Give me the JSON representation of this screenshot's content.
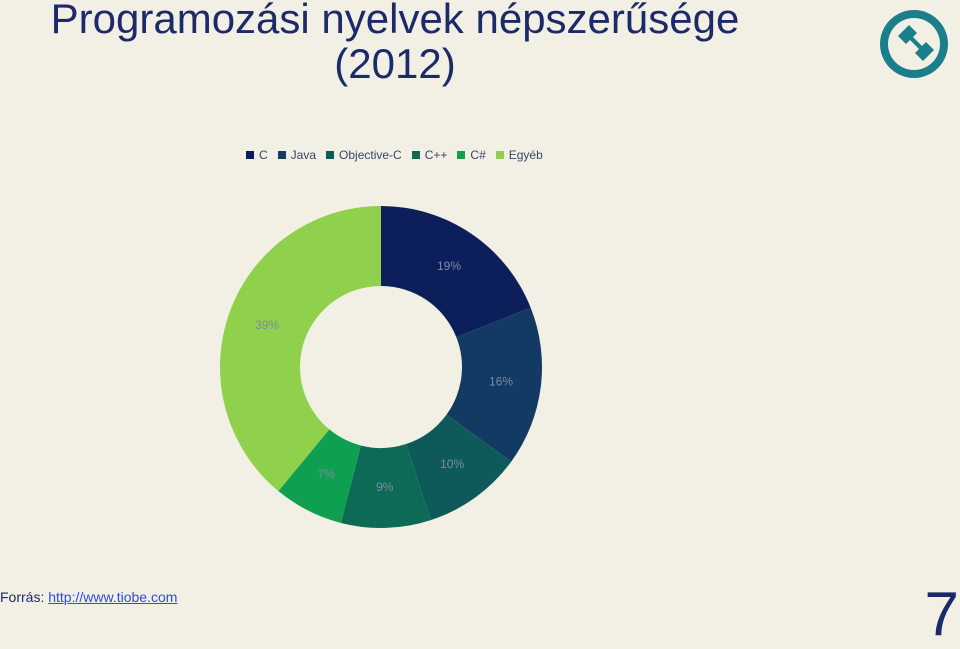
{
  "slide": {
    "title_line1": "Programozási nyelvek népszerűsége",
    "title_line2": "(2012)",
    "source_label": "Forrás: ",
    "source_link": "http://www.tiobe.com",
    "page_number": "7",
    "logo_icon": "wrench-icon"
  },
  "chart_data": {
    "type": "pie",
    "variant": "donut",
    "categories": [
      "C",
      "Java",
      "Objective-C",
      "C++",
      "C#",
      "Egyéb"
    ],
    "values": [
      19,
      16,
      10,
      9,
      7,
      39
    ],
    "labels": [
      "19%",
      "16%",
      "10%",
      "9%",
      "7%",
      "39%"
    ],
    "colors": [
      "#0d1f5a",
      "#123a63",
      "#0e5a5a",
      "#0d6a56",
      "#0ea050",
      "#8fd04c"
    ],
    "legend": "top"
  }
}
